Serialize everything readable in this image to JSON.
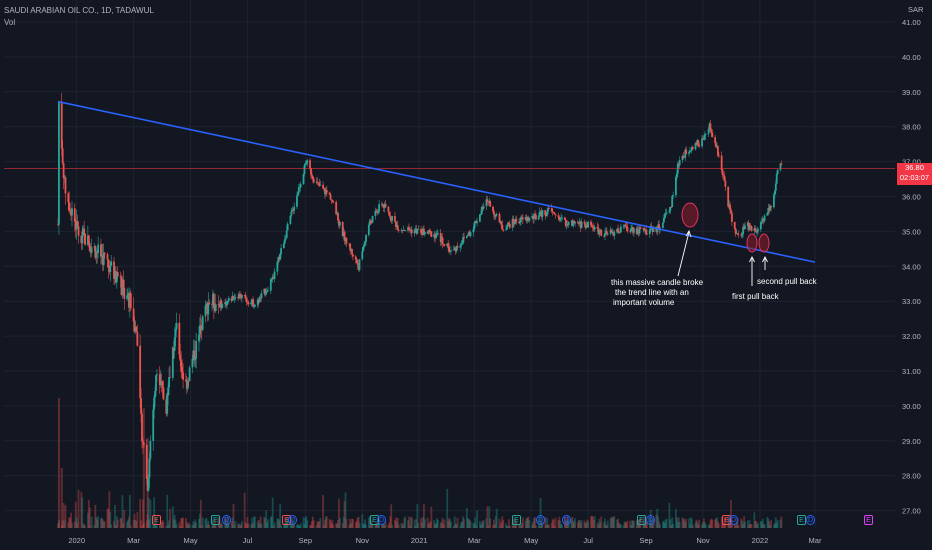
{
  "header": {
    "symbol": "SAUDI ARABIAN OIL CO., 1D, TADAWUL",
    "volume_label": "Vol"
  },
  "price_axis": {
    "currency": "SAR"
  },
  "current_price": {
    "value": "36.80",
    "countdown": "02:03:07",
    "color": "#f23645"
  },
  "annotations": {
    "breakout": [
      "this massive candle broke",
      "the trend line with an",
      "important volume"
    ],
    "first_pullback": "first pull back",
    "second_pullback": "second pull back"
  },
  "events": [
    {
      "label": "E",
      "kind": "earnings"
    },
    {
      "label": "E",
      "kind": "earnings"
    },
    {
      "label": "D",
      "kind": "dividend"
    },
    {
      "label": "E",
      "kind": "earnings"
    },
    {
      "label": "D",
      "kind": "dividend"
    },
    {
      "label": "E",
      "kind": "earnings"
    },
    {
      "label": "D",
      "kind": "dividend"
    },
    {
      "label": "E",
      "kind": "earnings"
    },
    {
      "label": "D",
      "kind": "dividend"
    },
    {
      "label": "D",
      "kind": "dividend"
    },
    {
      "label": "E",
      "kind": "earnings"
    },
    {
      "label": "D",
      "kind": "dividend"
    },
    {
      "label": "E",
      "kind": "earnings"
    },
    {
      "label": "D",
      "kind": "dividend"
    },
    {
      "label": "E",
      "kind": "earnings"
    },
    {
      "label": "D",
      "kind": "dividend"
    },
    {
      "label": "E",
      "kind": "upcoming"
    }
  ],
  "chart_data": {
    "type": "candlestick",
    "y_ticks": [
      "41.00",
      "40.00",
      "39.00",
      "38.00",
      "37.00",
      "36.00",
      "35.00",
      "34.00",
      "33.00",
      "32.00",
      "31.00",
      "30.00",
      "29.00",
      "28.00",
      "27.00"
    ],
    "ylim": [
      26.8,
      41.3
    ],
    "x_ticks": [
      "2020",
      "Mar",
      "May",
      "Jul",
      "Sep",
      "Nov",
      "2021",
      "Mar",
      "May",
      "Jul",
      "Sep",
      "Nov",
      "2022",
      "Mar"
    ],
    "xlim": [
      "2019-12-11",
      "2022-03-31"
    ],
    "trendline": {
      "from": {
        "date": "2019-12-11",
        "price": 38.72
      },
      "to": {
        "date": "2022-03-01",
        "price": 34.12
      },
      "color": "#2962ff"
    },
    "current_price_line": 36.8,
    "colors": {
      "up": "#26a69a",
      "down": "#ef5350",
      "grid": "#1f2330",
      "trendline": "#2962ff"
    },
    "price_path": [
      [
        "2019-12-11",
        35.2
      ],
      [
        "2019-12-12",
        38.7
      ],
      [
        "2019-12-18",
        36.3
      ],
      [
        "2019-12-31",
        35.1
      ],
      [
        "2020-01-15",
        34.6
      ],
      [
        "2020-01-31",
        34.2
      ],
      [
        "2020-02-15",
        33.5
      ],
      [
        "2020-02-26",
        33.0
      ],
      [
        "2020-03-05",
        32.0
      ],
      [
        "2020-03-09",
        29.5
      ],
      [
        "2020-03-16",
        27.8
      ],
      [
        "2020-03-25",
        31.0
      ],
      [
        "2020-04-05",
        30.0
      ],
      [
        "2020-04-15",
        32.3
      ],
      [
        "2020-04-25",
        30.5
      ],
      [
        "2020-05-08",
        31.8
      ],
      [
        "2020-05-20",
        33.0
      ],
      [
        "2020-06-05",
        32.9
      ],
      [
        "2020-06-20",
        33.2
      ],
      [
        "2020-07-10",
        32.9
      ],
      [
        "2020-07-28",
        33.6
      ],
      [
        "2020-08-15",
        35.3
      ],
      [
        "2020-09-02",
        37.0
      ],
      [
        "2020-09-12",
        36.4
      ],
      [
        "2020-09-28",
        36.0
      ],
      [
        "2020-10-10",
        35.0
      ],
      [
        "2020-10-28",
        34.0
      ],
      [
        "2020-11-08",
        35.2
      ],
      [
        "2020-11-22",
        35.8
      ],
      [
        "2020-12-10",
        35.1
      ],
      [
        "2020-12-31",
        35.0
      ],
      [
        "2021-01-20",
        34.9
      ],
      [
        "2021-02-05",
        34.4
      ],
      [
        "2021-02-25",
        35.0
      ],
      [
        "2021-03-15",
        35.9
      ],
      [
        "2021-03-31",
        35.1
      ],
      [
        "2021-04-15",
        35.3
      ],
      [
        "2021-05-05",
        35.4
      ],
      [
        "2021-05-20",
        35.6
      ],
      [
        "2021-06-10",
        35.2
      ],
      [
        "2021-07-01",
        35.2
      ],
      [
        "2021-07-20",
        34.9
      ],
      [
        "2021-08-10",
        35.1
      ],
      [
        "2021-08-30",
        35.0
      ],
      [
        "2021-09-15",
        35.1
      ],
      [
        "2021-09-28",
        35.8
      ],
      [
        "2021-10-06",
        37.0
      ],
      [
        "2021-10-18",
        37.4
      ],
      [
        "2021-11-01",
        37.6
      ],
      [
        "2021-11-08",
        38.0
      ],
      [
        "2021-11-20",
        37.0
      ],
      [
        "2021-11-28",
        35.8
      ],
      [
        "2021-12-05",
        35.0
      ],
      [
        "2021-12-10",
        34.8
      ],
      [
        "2021-12-17",
        35.2
      ],
      [
        "2021-12-28",
        35.0
      ],
      [
        "2022-01-05",
        35.4
      ],
      [
        "2022-01-15",
        35.9
      ],
      [
        "2022-01-20",
        36.7
      ],
      [
        "2022-01-24",
        36.9
      ]
    ]
  }
}
